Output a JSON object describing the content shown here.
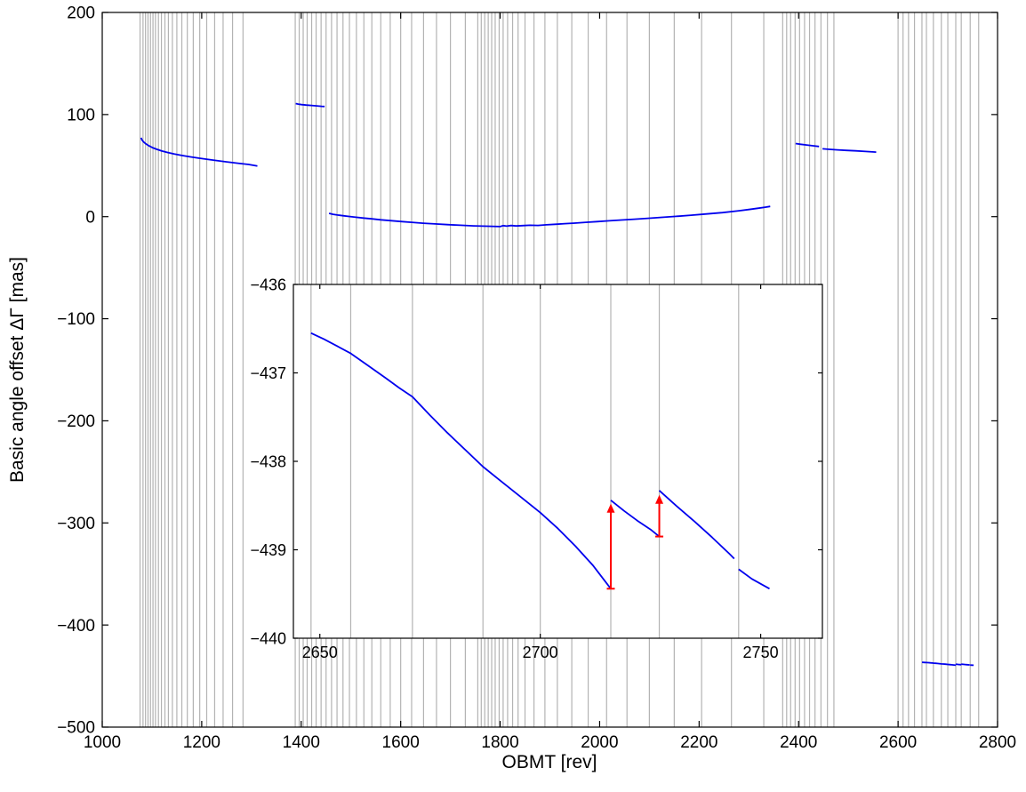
{
  "chart_data": {
    "type": "line",
    "title": "",
    "xlabel": "OBMT [rev]",
    "ylabel": "Basic angle offset ΔΓ [mas]",
    "legend": "none",
    "grid": "off",
    "colors": {
      "line": "#0000ee",
      "event_line": "#b3b3b3",
      "arrow": "#ff0000",
      "axis": "#000000",
      "background": "#ffffff"
    },
    "main": {
      "xlim": [
        1000,
        2800
      ],
      "ylim": [
        -500,
        200
      ],
      "x_ticks": [
        1000,
        1200,
        1400,
        1600,
        1800,
        2000,
        2200,
        2400,
        2600,
        2800
      ],
      "x_tick_labels": [
        "1000",
        "1200",
        "1400",
        "1600",
        "1800",
        "2000",
        "2200",
        "2400",
        "2600",
        "2800"
      ],
      "y_ticks": [
        -500,
        -400,
        -300,
        -200,
        -100,
        0,
        100,
        200
      ],
      "y_tick_labels": [
        "−500",
        "−400",
        "−300",
        "−200",
        "−100",
        "0",
        "100",
        "200"
      ],
      "event_lines": [
        1076,
        1082,
        1087,
        1092,
        1097,
        1102,
        1107,
        1113,
        1119,
        1126,
        1133,
        1141,
        1150,
        1160,
        1171,
        1183,
        1196,
        1210,
        1226,
        1243,
        1262,
        1283,
        1388,
        1396,
        1404,
        1412,
        1421,
        1430,
        1440,
        1450,
        1461,
        1472,
        1484,
        1497,
        1511,
        1526,
        1542,
        1560,
        1579,
        1600,
        1622,
        1646,
        1672,
        1700,
        1730,
        1755,
        1762,
        1769,
        1776,
        1783,
        1790,
        1798,
        1806,
        1815,
        1825,
        1836,
        1850,
        1868,
        1890,
        1915,
        1944,
        1977,
        2014,
        2055,
        2100,
        2150,
        2205,
        2265,
        2330,
        2368,
        2376,
        2384,
        2393,
        2402,
        2412,
        2422,
        2433,
        2445,
        2458,
        2471,
        2600,
        2610,
        2621,
        2633,
        2648,
        2657,
        2671,
        2687,
        2700,
        2716,
        2727,
        2745,
        2762
      ],
      "segments": [
        [
          [
            1078,
            77.2
          ],
          [
            1080,
            75.0
          ],
          [
            1083,
            73.2
          ],
          [
            1088,
            71.2
          ],
          [
            1094,
            69.3
          ],
          [
            1101,
            67.6
          ],
          [
            1110,
            65.9
          ],
          [
            1120,
            64.3
          ],
          [
            1132,
            62.8
          ],
          [
            1145,
            61.3
          ],
          [
            1160,
            59.9
          ],
          [
            1176,
            58.6
          ],
          [
            1194,
            57.3
          ],
          [
            1213,
            56.0
          ],
          [
            1233,
            54.7
          ],
          [
            1254,
            53.4
          ],
          [
            1276,
            52.1
          ],
          [
            1294,
            51.1
          ],
          [
            1312,
            49.6
          ]
        ],
        [
          [
            1389,
            110.8
          ],
          [
            1394,
            110.2
          ],
          [
            1401,
            109.7
          ],
          [
            1410,
            109.3
          ],
          [
            1420,
            108.9
          ],
          [
            1431,
            108.5
          ],
          [
            1441,
            108.1
          ],
          [
            1447,
            107.9
          ]
        ],
        [
          [
            1456,
            3.2
          ],
          [
            1464,
            2.3
          ],
          [
            1473,
            1.6
          ],
          [
            1484,
            0.9
          ],
          [
            1496,
            0.2
          ],
          [
            1510,
            -0.6
          ],
          [
            1525,
            -1.4
          ],
          [
            1542,
            -2.2
          ],
          [
            1560,
            -3.1
          ],
          [
            1579,
            -3.9
          ],
          [
            1600,
            -4.8
          ],
          [
            1622,
            -5.6
          ],
          [
            1645,
            -6.4
          ],
          [
            1669,
            -7.1
          ],
          [
            1694,
            -7.8
          ],
          [
            1720,
            -8.4
          ],
          [
            1747,
            -9.0
          ],
          [
            1775,
            -9.4
          ],
          [
            1800,
            -9.7
          ],
          [
            1806,
            -8.8
          ],
          [
            1813,
            -9.3
          ],
          [
            1822,
            -8.7
          ],
          [
            1832,
            -9.1
          ],
          [
            1845,
            -8.8
          ],
          [
            1860,
            -8.4
          ],
          [
            1876,
            -8.6
          ],
          [
            1893,
            -8.0
          ],
          [
            1911,
            -7.5
          ],
          [
            1930,
            -6.9
          ],
          [
            1950,
            -6.3
          ],
          [
            1972,
            -5.6
          ],
          [
            1995,
            -4.9
          ],
          [
            2019,
            -4.1
          ],
          [
            2044,
            -3.3
          ],
          [
            2070,
            -2.5
          ],
          [
            2097,
            -1.6
          ],
          [
            2125,
            -0.7
          ],
          [
            2154,
            0.3
          ],
          [
            2184,
            1.4
          ],
          [
            2215,
            2.6
          ],
          [
            2247,
            3.9
          ],
          [
            2280,
            5.8
          ],
          [
            2300,
            7.0
          ],
          [
            2318,
            8.2
          ],
          [
            2333,
            9.2
          ],
          [
            2343,
            10.0
          ]
        ],
        [
          [
            2394,
            71.6
          ],
          [
            2404,
            70.9
          ],
          [
            2416,
            70.2
          ],
          [
            2429,
            69.4
          ],
          [
            2441,
            68.7
          ]
        ],
        [
          [
            2448,
            66.4
          ],
          [
            2462,
            65.9
          ],
          [
            2478,
            65.4
          ],
          [
            2496,
            64.9
          ],
          [
            2515,
            64.4
          ],
          [
            2535,
            63.8
          ],
          [
            2556,
            63.2
          ]
        ]
      ]
    },
    "inset": {
      "xlim": [
        2644,
        2764
      ],
      "ylim": [
        -440,
        -436
      ],
      "x_ticks": [
        2650,
        2700,
        2750
      ],
      "x_tick_labels": [
        "2650",
        "2700",
        "2750"
      ],
      "y_ticks": [
        -440,
        -439,
        -438,
        -437,
        -436
      ],
      "y_tick_labels": [
        "−440",
        "−439",
        "−438",
        "−437",
        "−436"
      ],
      "event_lines": [
        2648,
        2657,
        2671,
        2687,
        2700,
        2716,
        2727,
        2745
      ],
      "segments": [
        [
          [
            2648,
            -436.55
          ],
          [
            2651,
            -436.62
          ],
          [
            2654,
            -436.7
          ],
          [
            2657,
            -436.78
          ],
          [
            2661,
            -436.92
          ],
          [
            2665,
            -437.06
          ],
          [
            2668,
            -437.17
          ],
          [
            2671,
            -437.27
          ],
          [
            2675,
            -437.48
          ],
          [
            2679,
            -437.68
          ],
          [
            2683,
            -437.87
          ],
          [
            2687,
            -438.06
          ],
          [
            2691,
            -438.22
          ],
          [
            2695,
            -438.38
          ],
          [
            2700,
            -438.58
          ],
          [
            2704,
            -438.76
          ],
          [
            2708,
            -438.96
          ],
          [
            2712,
            -439.18
          ],
          [
            2716,
            -439.44
          ]
        ],
        [
          [
            2716,
            -438.44
          ],
          [
            2719,
            -438.56
          ],
          [
            2722,
            -438.67
          ],
          [
            2725,
            -438.77
          ],
          [
            2727,
            -438.85
          ]
        ],
        [
          [
            2727,
            -438.33
          ],
          [
            2731,
            -438.51
          ],
          [
            2735,
            -438.68
          ],
          [
            2739,
            -438.86
          ],
          [
            2743,
            -439.05
          ],
          [
            2744,
            -439.1
          ]
        ],
        [
          [
            2745,
            -439.22
          ],
          [
            2748,
            -439.33
          ],
          [
            2752,
            -439.44
          ]
        ]
      ],
      "arrows": [
        {
          "x": 2716,
          "y_from": -439.44,
          "y_to": -438.48
        },
        {
          "x": 2727,
          "y_from": -438.85,
          "y_to": -438.38
        }
      ]
    }
  }
}
